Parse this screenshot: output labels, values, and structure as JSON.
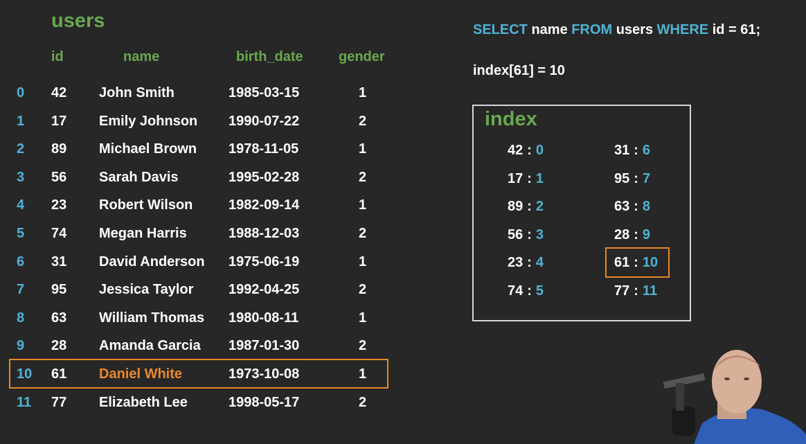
{
  "users_table": {
    "title": "users",
    "headers": {
      "id": "id",
      "name": "name",
      "birth_date": "birth_date",
      "gender": "gender"
    },
    "rows": [
      {
        "idx": "0",
        "id": "42",
        "name": "John Smith",
        "birth_date": "1985-03-15",
        "gender": "1"
      },
      {
        "idx": "1",
        "id": "17",
        "name": "Emily Johnson",
        "birth_date": "1990-07-22",
        "gender": "2"
      },
      {
        "idx": "2",
        "id": "89",
        "name": "Michael Brown",
        "birth_date": "1978-11-05",
        "gender": "1"
      },
      {
        "idx": "3",
        "id": "56",
        "name": "Sarah Davis",
        "birth_date": "1995-02-28",
        "gender": "2"
      },
      {
        "idx": "4",
        "id": "23",
        "name": "Robert Wilson",
        "birth_date": "1982-09-14",
        "gender": "1"
      },
      {
        "idx": "5",
        "id": "74",
        "name": "Megan Harris",
        "birth_date": "1988-12-03",
        "gender": "2"
      },
      {
        "idx": "6",
        "id": "31",
        "name": "David Anderson",
        "birth_date": "1975-06-19",
        "gender": "1"
      },
      {
        "idx": "7",
        "id": "95",
        "name": "Jessica Taylor",
        "birth_date": "1992-04-25",
        "gender": "2"
      },
      {
        "idx": "8",
        "id": "63",
        "name": "William Thomas",
        "birth_date": "1980-08-11",
        "gender": "1"
      },
      {
        "idx": "9",
        "id": "28",
        "name": "Amanda Garcia",
        "birth_date": "1987-01-30",
        "gender": "2"
      },
      {
        "idx": "10",
        "id": "61",
        "name": "Daniel White",
        "birth_date": "1973-10-08",
        "gender": "1"
      },
      {
        "idx": "11",
        "id": "77",
        "name": "Elizabeth Lee",
        "birth_date": "1998-05-17",
        "gender": "2"
      }
    ],
    "highlighted_row": "10"
  },
  "query": {
    "select_kw": "SELECT",
    "column": "name",
    "from_kw": "FROM",
    "table": "users",
    "where_kw": "WHERE",
    "condition": "id = 61;"
  },
  "lookup": "index[61] = 10",
  "index_panel": {
    "title": "index",
    "separator": ":",
    "left_column": [
      {
        "key": "42",
        "value": "0"
      },
      {
        "key": "17",
        "value": "1"
      },
      {
        "key": "89",
        "value": "2"
      },
      {
        "key": "56",
        "value": "3"
      },
      {
        "key": "23",
        "value": "4"
      },
      {
        "key": "74",
        "value": "5"
      }
    ],
    "right_column": [
      {
        "key": "31",
        "value": "6"
      },
      {
        "key": "95",
        "value": "7"
      },
      {
        "key": "63",
        "value": "8"
      },
      {
        "key": "28",
        "value": "9"
      },
      {
        "key": "61",
        "value": "10"
      },
      {
        "key": "77",
        "value": "11"
      }
    ],
    "highlighted_key": "61"
  },
  "colors": {
    "background": "#272727",
    "green": "#6aa84f",
    "blue": "#4fb3d6",
    "orange": "#e8892c",
    "text": "#ffffff"
  }
}
